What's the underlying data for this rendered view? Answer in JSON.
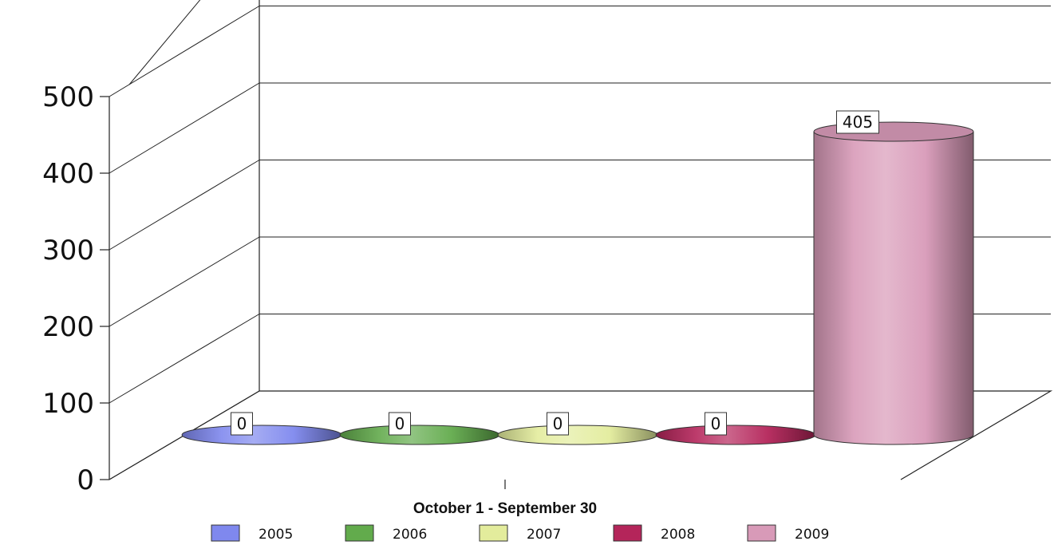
{
  "chart_data": {
    "type": "bar",
    "style": "3d-cylinder",
    "xlabel": "October 1 - September 30",
    "ylabel": "",
    "title": "",
    "ylim": [
      0,
      500
    ],
    "yticks": [
      "0",
      "100",
      "200",
      "300",
      "400",
      "500"
    ],
    "grid": true,
    "legend_position": "bottom",
    "series": [
      {
        "name": "2005",
        "value": 0,
        "label": "0",
        "color": "#7f88ee"
      },
      {
        "name": "2006",
        "value": 0,
        "label": "0",
        "color": "#62ab4c"
      },
      {
        "name": "2007",
        "value": 0,
        "label": "0",
        "color": "#e3ec9c"
      },
      {
        "name": "2008",
        "value": 0,
        "label": "0",
        "color": "#b4255a"
      },
      {
        "name": "2009",
        "value": 405,
        "label": "405",
        "color": "#d89ab8"
      }
    ]
  }
}
